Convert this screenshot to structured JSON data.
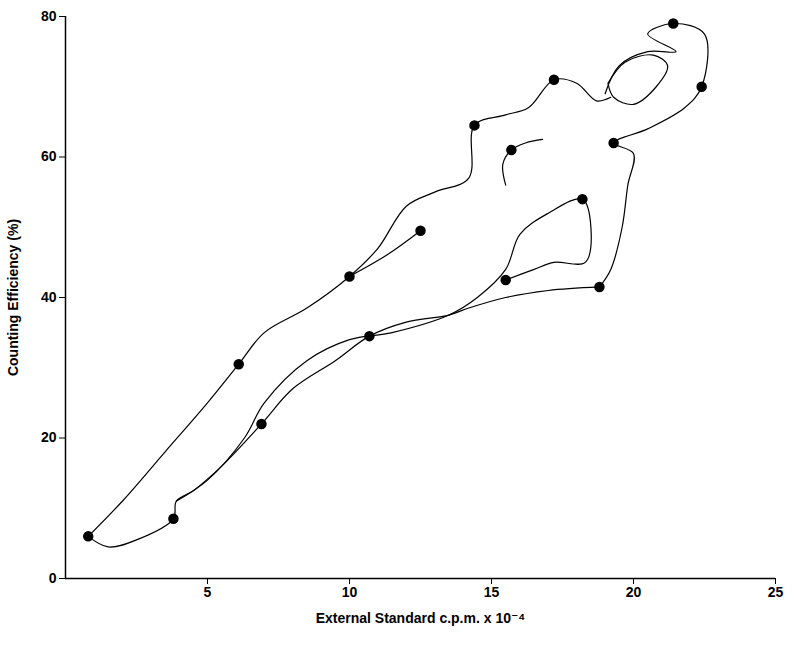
{
  "chart_data": {
    "type": "scatter",
    "xlabel": "External Standard c.p.m. x 10⁻⁴",
    "ylabel": "Counting Efficiency (%)",
    "x": [
      0.8,
      3.8,
      6.1,
      6.9,
      10,
      10.7,
      12.5,
      14.4,
      15.5,
      15.7,
      17.2,
      18.2,
      18.8,
      19.3,
      21.4,
      22.4
    ],
    "values": [
      6,
      8.5,
      30.5,
      22,
      43,
      34.5,
      49.5,
      64.5,
      42.5,
      61,
      71,
      54,
      41.5,
      62,
      79,
      70
    ],
    "color": "#000000",
    "marker": "circle",
    "outline": [
      [
        [
          0.8,
          6
        ],
        [
          2,
          11
        ],
        [
          3.5,
          18
        ],
        [
          5,
          25
        ],
        [
          6.1,
          30.5
        ],
        [
          7,
          35
        ],
        [
          8.5,
          38.5
        ],
        [
          10,
          43
        ],
        [
          11,
          47
        ],
        [
          12,
          53
        ],
        [
          13,
          55
        ],
        [
          14.2,
          57
        ],
        [
          14.4,
          64.5
        ],
        [
          15.5,
          66
        ],
        [
          16.3,
          67
        ],
        [
          17.2,
          71
        ],
        [
          18,
          70.5
        ],
        [
          18.7,
          68
        ],
        [
          19.2,
          68.5
        ]
      ],
      [
        [
          10,
          43
        ],
        [
          11.3,
          46
        ],
        [
          12.5,
          49.5
        ]
      ],
      [
        [
          19,
          69
        ],
        [
          19.5,
          73
        ],
        [
          20.5,
          75
        ],
        [
          21.5,
          75
        ],
        [
          20.5,
          77.5
        ],
        [
          21.4,
          79
        ],
        [
          22.5,
          77.5
        ],
        [
          22.4,
          70
        ],
        [
          21.8,
          67
        ],
        [
          20.5,
          64
        ],
        [
          19.3,
          62
        ],
        [
          20,
          60.5
        ],
        [
          19.8,
          56
        ],
        [
          19.6,
          50
        ],
        [
          19.2,
          44
        ],
        [
          18.8,
          41.5
        ]
      ],
      [
        [
          19.1,
          70.5
        ],
        [
          19.7,
          73.5
        ],
        [
          20.7,
          74.5
        ],
        [
          21.2,
          73
        ],
        [
          20.8,
          70
        ],
        [
          20,
          67.5
        ],
        [
          19.3,
          68.5
        ],
        [
          19.1,
          70.5
        ]
      ],
      [
        [
          0.8,
          6
        ],
        [
          1.5,
          4.5
        ],
        [
          2.5,
          5.5
        ],
        [
          3.8,
          8.5
        ],
        [
          3.9,
          11
        ],
        [
          4.5,
          12.5
        ],
        [
          5.5,
          16
        ],
        [
          6.9,
          22
        ],
        [
          8,
          27
        ],
        [
          9.5,
          31
        ],
        [
          10.7,
          34.5
        ],
        [
          12,
          36.5
        ],
        [
          13.5,
          37.5
        ],
        [
          14.2,
          38.5
        ],
        [
          15.5,
          40
        ],
        [
          17,
          41
        ],
        [
          18.8,
          41.5
        ]
      ],
      [
        [
          3.9,
          11
        ],
        [
          5,
          14
        ],
        [
          6.3,
          20
        ],
        [
          7,
          25
        ],
        [
          8.5,
          31
        ],
        [
          10,
          34
        ],
        [
          11.5,
          35
        ],
        [
          13.5,
          37.5
        ],
        [
          14.5,
          40
        ],
        [
          15.5,
          44
        ],
        [
          16,
          49
        ],
        [
          17,
          52
        ],
        [
          18.2,
          54
        ],
        [
          18.5,
          50
        ],
        [
          18.3,
          45
        ],
        [
          17.2,
          45
        ],
        [
          16.5,
          44
        ],
        [
          15.5,
          42.5
        ]
      ],
      [
        [
          15.5,
          56
        ],
        [
          15.4,
          59
        ],
        [
          15.7,
          61
        ],
        [
          16.2,
          62
        ],
        [
          16.8,
          62.5
        ]
      ]
    ],
    "xlim": [
      0,
      25
    ],
    "ylim": [
      0,
      80
    ],
    "xticks": [
      5,
      10,
      15,
      20,
      25
    ],
    "yticks": [
      0,
      20,
      40,
      60,
      80
    ],
    "grid": false
  }
}
